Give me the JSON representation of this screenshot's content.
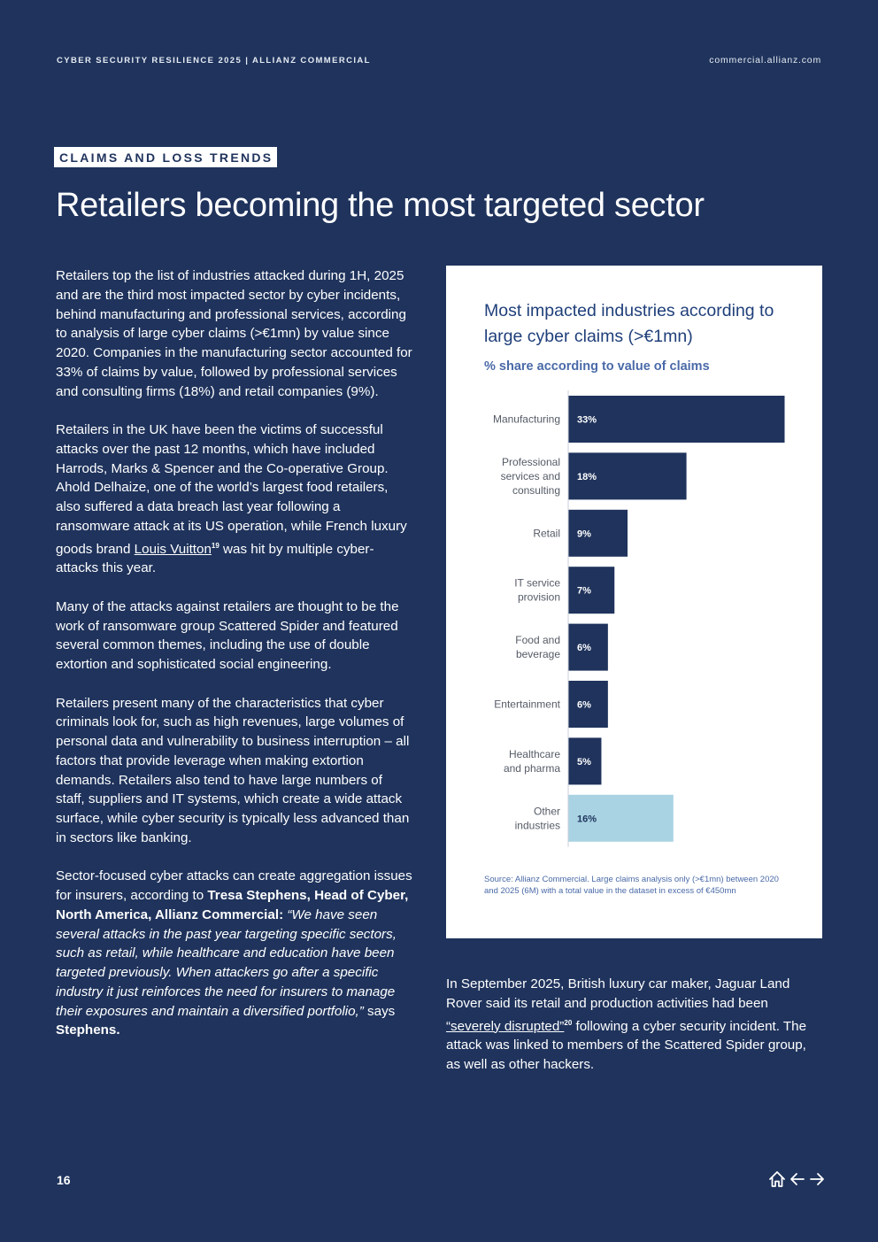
{
  "header": {
    "left": "CYBER SECURITY RESILIENCE 2025 | ALLIANZ COMMERCIAL",
    "right": "commercial.allianz.com"
  },
  "section_tag": "CLAIMS AND LOSS TRENDS",
  "title": "Retailers becoming the most targeted sector",
  "left_column": {
    "p1": "Retailers top the list of industries attacked during 1H, 2025 and are the third most impacted sector by cyber incidents, behind manufacturing and professional services, according to analysis of large cyber claims (>€1mn) by value since 2020. Companies in the manufacturing sector accounted for 33% of claims by value, followed by professional services and consulting firms (18%) and retail companies (9%).",
    "p2_before": "Retailers in the UK have been the victims of successful attacks over the past 12 months, which have included Harrods, Marks & Spencer and the Co-operative Group. Ahold Delhaize, one of the world’s largest food retailers, also suffered a data breach last year following a ransomware attack at its US operation, while French luxury goods brand ",
    "p2_link": "Louis Vuitton",
    "p2_sup": "19",
    "p2_after": " was hit by multiple cyber-attacks this year.",
    "p3": "Many of the attacks against retailers are thought to be the work of ransomware group Scattered Spider and featured several common themes, including the use of double extortion and sophisticated social engineering.",
    "p4": "Retailers present many of the characteristics that cyber criminals look for, such as high revenues, large volumes of personal data and vulnerability to business interruption – all factors that provide leverage when making extortion demands. Retailers also tend to have large numbers of staff, suppliers and IT systems, which create a wide attack surface, while cyber security is typically less advanced than in sectors like banking.",
    "p5_intro": "Sector-focused cyber attacks can create aggregation issues for insurers, according to ",
    "p5_name": "Tresa Stephens, Head of Cyber, North America, Allianz Commercial:",
    "p5_quote": " “We have seen several attacks in the past year targeting specific sectors, such as retail, while healthcare and education have been targeted previously. When attackers go after a specific industry it just reinforces the need for insurers to manage their exposures and maintain a diversified portfolio,”",
    "p5_says": " says ",
    "p5_surname": "Stephens."
  },
  "right_column": {
    "p_before": "In September 2025, British luxury car maker, Jaguar Land Rover said its retail and production activities had been ",
    "p_link": "“severely disrupted”",
    "p_sup": "20",
    "p_after": " following a cyber security incident. The attack was linked to members of the Scattered Spider group, as well as other hackers."
  },
  "chart_data": {
    "type": "bar",
    "orientation": "horizontal",
    "title": "Most impacted industries according to large cyber claims (>€1mn)",
    "subtitle": "% share according to value of claims",
    "categories": [
      [
        "Manufacturing"
      ],
      [
        "Professional",
        "services and",
        "consulting"
      ],
      [
        "Retail"
      ],
      [
        "IT service",
        "provision"
      ],
      [
        "Food and",
        "beverage"
      ],
      [
        "Entertainment"
      ],
      [
        "Healthcare",
        "and pharma"
      ],
      [
        "Other",
        "industries"
      ]
    ],
    "values": [
      33,
      18,
      9,
      7,
      6,
      6,
      5,
      16
    ],
    "value_labels": [
      "33%",
      "18%",
      "9%",
      "7%",
      "6%",
      "6%",
      "5%",
      "16%"
    ],
    "xlim": [
      0,
      33
    ],
    "bar_colors": [
      "#1f335c",
      "#1f335c",
      "#1f335c",
      "#1f335c",
      "#1f335c",
      "#1f335c",
      "#1f335c",
      "#a9d3e3"
    ],
    "source": "Source: Allianz Commercial. Large claims analysis only (>€1mn) between 2020 and 2025 (6M) with a total value in the dataset in excess of €450mn"
  },
  "footer": {
    "page_number": "16",
    "icons": [
      "home-icon",
      "arrow-left-icon",
      "arrow-right-icon"
    ]
  }
}
